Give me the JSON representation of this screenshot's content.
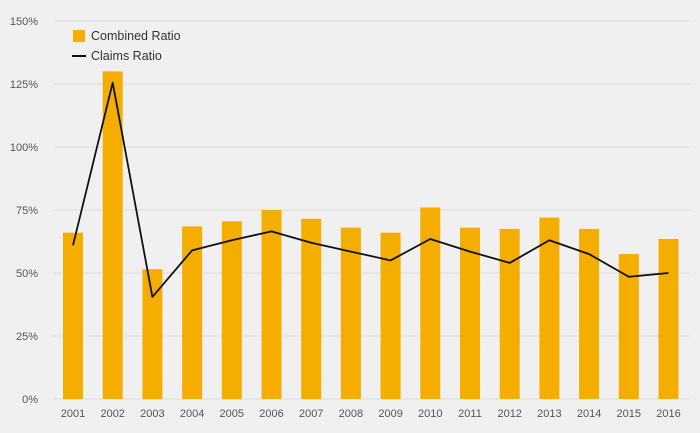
{
  "colors": {
    "background": "#f0f0f0",
    "gridline": "#dddddd",
    "bar": "#f5ae00",
    "line": "#111111",
    "axis_text": "#555555"
  },
  "chart_data": {
    "type": "bar",
    "title": "",
    "xlabel": "",
    "ylabel": "",
    "categories": [
      "2001",
      "2002",
      "2003",
      "2004",
      "2005",
      "2006",
      "2007",
      "2008",
      "2009",
      "2010",
      "2011",
      "2012",
      "2013",
      "2014",
      "2015",
      "2016"
    ],
    "ylim": [
      0,
      150
    ],
    "y_ticks": [
      0,
      25,
      50,
      75,
      100,
      125,
      150
    ],
    "y_tick_labels": [
      "0%",
      "25%",
      "50%",
      "75%",
      "100%",
      "125%",
      "150%"
    ],
    "grid": true,
    "legend_position": "top-left",
    "series": [
      {
        "name": "Combined Ratio",
        "type": "bar",
        "color": "#f5ae00",
        "values": [
          66,
          130,
          51.5,
          68.5,
          70.5,
          75,
          71.5,
          68,
          66,
          76,
          68,
          67.5,
          72,
          67.5,
          57.5,
          63.5
        ]
      },
      {
        "name": "Claims Ratio",
        "type": "line",
        "color": "#111111",
        "values": [
          61,
          125.5,
          40.5,
          59,
          63,
          66.5,
          62,
          58.5,
          55,
          63.5,
          58.5,
          54,
          63,
          57.5,
          48.5,
          50
        ]
      }
    ]
  }
}
